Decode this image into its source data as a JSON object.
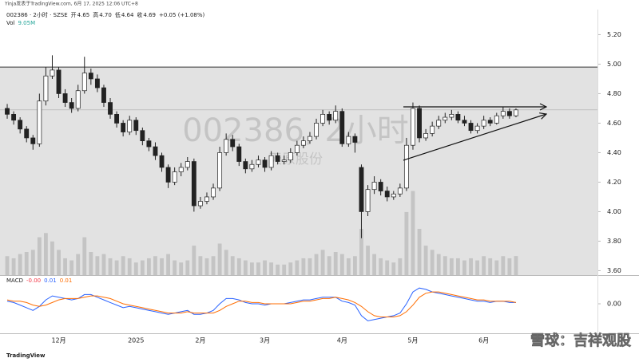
{
  "header": {
    "published": "Yinja发表于TradingView.com, 6月 17, 2025 12:06 UTC+8",
    "symbol": "002386 · 2小时 · SZSE",
    "open_label": "开",
    "open": "4.65",
    "high_label": "高",
    "high": "4.70",
    "low_label": "低",
    "low": "4.64",
    "close_label": "收",
    "close": "4.69",
    "change": "+0.05 (+1.08%)"
  },
  "chart_data": {
    "type": "candlestick",
    "watermark": "002386, 2小时",
    "watermark_name": "天原股份",
    "categories": [
      null,
      null,
      null,
      null,
      null,
      null,
      null,
      null,
      "12月",
      null,
      null,
      null,
      null,
      null,
      null,
      null,
      null,
      null,
      null,
      null,
      "2025",
      null,
      null,
      null,
      null,
      null,
      null,
      null,
      null,
      null,
      "2月",
      null,
      null,
      null,
      null,
      null,
      null,
      null,
      null,
      null,
      "3月",
      null,
      null,
      null,
      null,
      null,
      null,
      null,
      null,
      null,
      null,
      null,
      "4月",
      null,
      null,
      null,
      null,
      null,
      null,
      null,
      null,
      null,
      null,
      "5月",
      null,
      null,
      null,
      null,
      null,
      null,
      null,
      null,
      null,
      null,
      "6月",
      null,
      null,
      null,
      null,
      null
    ],
    "open": [
      4.7,
      4.66,
      4.62,
      4.56,
      4.5,
      4.46,
      4.75,
      4.92,
      4.96,
      4.8,
      4.74,
      4.7,
      4.82,
      4.94,
      4.9,
      4.84,
      4.74,
      4.66,
      4.6,
      4.54,
      4.62,
      4.55,
      4.48,
      4.44,
      4.38,
      4.3,
      4.2,
      4.27,
      4.3,
      4.34,
      4.04,
      4.07,
      4.1,
      4.16,
      4.4,
      4.49,
      4.44,
      4.34,
      4.29,
      4.32,
      4.35,
      4.3,
      4.38,
      4.34,
      4.35,
      4.4,
      4.45,
      4.48,
      4.51,
      4.6,
      4.66,
      4.62,
      4.68,
      4.46,
      4.51,
      4.3,
      4.0,
      4.15,
      4.2,
      4.14,
      4.1,
      4.12,
      4.16,
      4.45,
      4.7,
      4.5,
      4.53,
      4.58,
      4.62,
      4.64,
      4.66,
      4.62,
      4.6,
      4.55,
      4.58,
      4.62,
      4.6,
      4.65,
      4.68,
      4.65
    ],
    "high": [
      4.73,
      4.68,
      4.64,
      4.58,
      4.52,
      4.8,
      4.98,
      5.06,
      4.98,
      4.83,
      4.77,
      4.86,
      5.05,
      4.97,
      4.93,
      4.86,
      4.77,
      4.68,
      4.62,
      4.65,
      4.64,
      4.57,
      4.5,
      4.47,
      4.4,
      4.32,
      4.3,
      4.33,
      4.37,
      4.36,
      4.1,
      4.13,
      4.19,
      4.44,
      4.53,
      4.52,
      4.46,
      4.36,
      4.35,
      4.38,
      4.37,
      4.41,
      4.4,
      4.38,
      4.43,
      4.48,
      4.51,
      4.54,
      4.63,
      4.69,
      4.68,
      4.72,
      4.7,
      4.54,
      4.53,
      4.32,
      4.18,
      4.24,
      4.22,
      4.17,
      4.14,
      4.19,
      4.5,
      4.74,
      4.72,
      4.56,
      4.61,
      4.65,
      4.67,
      4.69,
      4.68,
      4.65,
      4.62,
      4.6,
      4.65,
      4.64,
      4.67,
      4.71,
      4.7,
      4.7
    ],
    "low": [
      4.63,
      4.59,
      4.53,
      4.47,
      4.42,
      4.44,
      4.72,
      4.9,
      4.77,
      4.71,
      4.67,
      4.68,
      4.8,
      4.86,
      4.81,
      4.71,
      4.63,
      4.57,
      4.51,
      4.52,
      4.52,
      4.45,
      4.41,
      4.35,
      4.27,
      4.16,
      4.18,
      4.24,
      4.28,
      4.0,
      4.02,
      4.05,
      4.08,
      4.14,
      4.38,
      4.41,
      4.31,
      4.26,
      4.27,
      4.3,
      4.27,
      4.28,
      4.32,
      4.32,
      4.33,
      4.38,
      4.43,
      4.46,
      4.49,
      4.58,
      4.59,
      4.6,
      4.44,
      4.44,
      4.4,
      3.82,
      3.97,
      4.12,
      4.11,
      4.07,
      4.08,
      4.1,
      4.14,
      4.42,
      4.47,
      4.48,
      4.51,
      4.56,
      4.6,
      4.62,
      4.6,
      4.58,
      4.53,
      4.53,
      4.56,
      4.58,
      4.59,
      4.63,
      4.63,
      4.64
    ],
    "close": [
      4.66,
      4.62,
      4.56,
      4.5,
      4.46,
      4.75,
      4.92,
      4.96,
      4.8,
      4.74,
      4.7,
      4.82,
      4.94,
      4.9,
      4.84,
      4.74,
      4.66,
      4.6,
      4.54,
      4.62,
      4.55,
      4.48,
      4.44,
      4.38,
      4.3,
      4.2,
      4.27,
      4.3,
      4.34,
      4.04,
      4.07,
      4.1,
      4.16,
      4.4,
      4.49,
      4.44,
      4.34,
      4.29,
      4.32,
      4.35,
      4.3,
      4.38,
      4.34,
      4.35,
      4.4,
      4.45,
      4.48,
      4.51,
      4.6,
      4.66,
      4.62,
      4.68,
      4.46,
      4.51,
      4.47,
      4.0,
      4.15,
      4.2,
      4.14,
      4.1,
      4.12,
      4.16,
      4.45,
      4.7,
      4.5,
      4.53,
      4.58,
      4.62,
      4.64,
      4.66,
      4.62,
      4.6,
      4.55,
      4.58,
      4.62,
      4.6,
      4.65,
      4.68,
      4.65,
      4.69
    ],
    "ylim": [
      3.57,
      5.37
    ],
    "yticks": [
      {
        "value": 3.6,
        "label": "3.60"
      },
      {
        "value": 3.8,
        "label": "3.80"
      },
      {
        "value": 4.0,
        "label": "4.00"
      },
      {
        "value": 4.2,
        "label": "4.20"
      },
      {
        "value": 4.4,
        "label": "4.40"
      },
      {
        "value": 4.6,
        "label": "4.60"
      },
      {
        "value": 4.8,
        "label": "4.80"
      },
      {
        "value": 5.0,
        "label": "5.00"
      },
      {
        "value": 5.2,
        "label": "5.20"
      }
    ],
    "zone_top": 4.98,
    "zone_color": "#e2e2e2",
    "up_color": "#ffffff",
    "down_color": "#222222",
    "volume": {
      "label": "Vol",
      "last": "9.05M",
      "color": "#c4c4c4",
      "ylim": [
        0,
        55
      ],
      "values": [
        9,
        8,
        10,
        11,
        12,
        18,
        20,
        16,
        12,
        8,
        7,
        10,
        18,
        11,
        9,
        10,
        8,
        7,
        9,
        8,
        6,
        7,
        8,
        9,
        8,
        10,
        7,
        6,
        7,
        14,
        9,
        8,
        9,
        15,
        12,
        9,
        8,
        7,
        6,
        6,
        7,
        6,
        5,
        5,
        6,
        7,
        8,
        8,
        10,
        12,
        9,
        11,
        10,
        8,
        9,
        22,
        14,
        10,
        8,
        7,
        6,
        8,
        30,
        40,
        22,
        14,
        12,
        10,
        9,
        8,
        8,
        7,
        8,
        7,
        9,
        8,
        7,
        9,
        8,
        9.05
      ]
    },
    "macd": {
      "label": "MACD",
      "readout": [
        "-0.00",
        "0.01",
        "0.01"
      ],
      "readout_colors": [
        "#f23645",
        "#2962ff",
        "#ff6d00"
      ],
      "ylim": [
        -0.2,
        0.2
      ],
      "yticks": [
        {
          "value": 0,
          "label": "0.00"
        }
      ],
      "macd_line": {
        "color": "#2962ff",
        "values": [
          0.02,
          0.01,
          -0.01,
          -0.03,
          -0.05,
          -0.02,
          0.03,
          0.06,
          0.05,
          0.04,
          0.03,
          0.04,
          0.07,
          0.07,
          0.05,
          0.03,
          0.01,
          -0.01,
          -0.03,
          -0.02,
          -0.03,
          -0.04,
          -0.05,
          -0.06,
          -0.07,
          -0.08,
          -0.07,
          -0.06,
          -0.05,
          -0.08,
          -0.08,
          -0.07,
          -0.05,
          0.0,
          0.04,
          0.04,
          0.03,
          0.01,
          0.0,
          0.0,
          -0.01,
          0.0,
          0.0,
          0.0,
          0.01,
          0.02,
          0.03,
          0.03,
          0.04,
          0.05,
          0.05,
          0.05,
          0.02,
          0.01,
          -0.01,
          -0.09,
          -0.13,
          -0.12,
          -0.11,
          -0.1,
          -0.09,
          -0.07,
          0.0,
          0.09,
          0.12,
          0.11,
          0.09,
          0.08,
          0.07,
          0.06,
          0.05,
          0.04,
          0.03,
          0.02,
          0.02,
          0.01,
          0.02,
          0.02,
          0.01,
          0.01
        ]
      },
      "signal_line": {
        "color": "#ff6d00",
        "values": [
          0.03,
          0.02,
          0.02,
          0.01,
          -0.01,
          -0.02,
          -0.01,
          0.01,
          0.03,
          0.04,
          0.04,
          0.04,
          0.05,
          0.06,
          0.06,
          0.05,
          0.04,
          0.02,
          0.0,
          -0.01,
          -0.02,
          -0.03,
          -0.04,
          -0.05,
          -0.06,
          -0.07,
          -0.07,
          -0.07,
          -0.06,
          -0.07,
          -0.07,
          -0.07,
          -0.07,
          -0.05,
          -0.02,
          0.0,
          0.02,
          0.02,
          0.01,
          0.01,
          0.0,
          0.0,
          0.0,
          0.0,
          0.0,
          0.01,
          0.02,
          0.02,
          0.03,
          0.04,
          0.04,
          0.05,
          0.04,
          0.03,
          0.01,
          -0.02,
          -0.06,
          -0.09,
          -0.1,
          -0.1,
          -0.1,
          -0.09,
          -0.06,
          -0.01,
          0.05,
          0.08,
          0.09,
          0.09,
          0.08,
          0.07,
          0.06,
          0.05,
          0.04,
          0.03,
          0.03,
          0.02,
          0.02,
          0.02,
          0.02,
          0.01
        ]
      }
    }
  },
  "footer": {
    "brand": "TradingView",
    "credit": "雪球：吉祥观股"
  }
}
